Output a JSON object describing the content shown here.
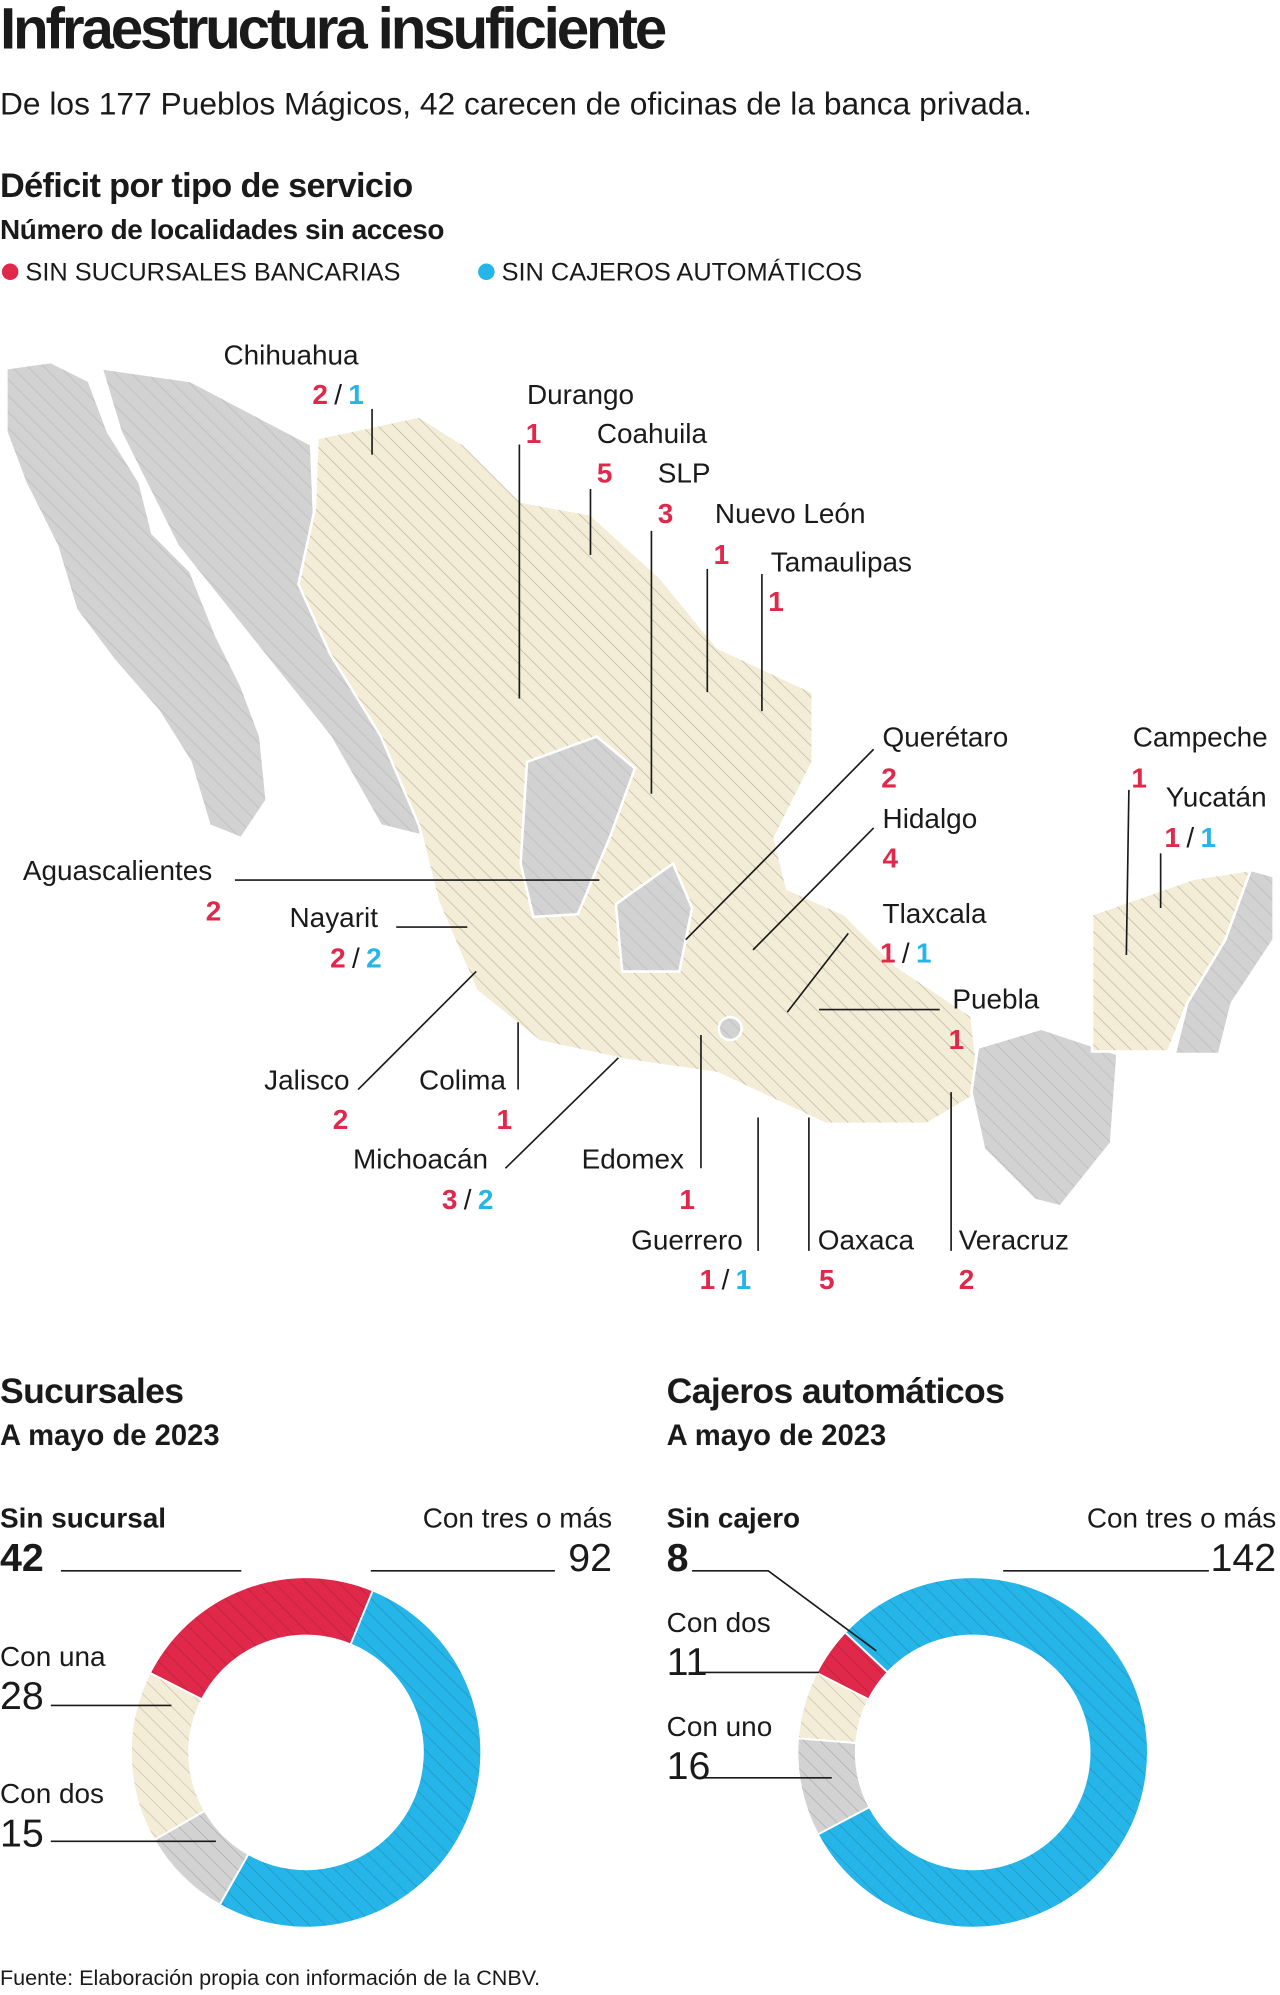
{
  "header": {
    "title": "Infraestructura insuficiente",
    "subtitle": "De los 177 Pueblos Mágicos, 42 carecen de oficinas de la banca privada."
  },
  "map": {
    "title": "Déficit por tipo de servicio",
    "subtitle": "Número de localidades sin acceso",
    "legend": [
      {
        "label": "SIN SUCURSALES BANCARIAS",
        "color": "#e0284a"
      },
      {
        "label": "SIN CAJEROS AUTOMÁTICOS",
        "color": "#25b5e8"
      }
    ],
    "separator": "/",
    "states": [
      {
        "name": "Chihuahua",
        "sin_sucursales": 2,
        "sin_cajeros": 1
      },
      {
        "name": "Durango",
        "sin_sucursales": 1
      },
      {
        "name": "Coahuila",
        "sin_sucursales": 5
      },
      {
        "name": "SLP",
        "sin_sucursales": 3
      },
      {
        "name": "Nuevo León",
        "sin_sucursales": 1
      },
      {
        "name": "Tamaulipas",
        "sin_sucursales": 1
      },
      {
        "name": "Querétaro",
        "sin_sucursales": 2
      },
      {
        "name": "Hidalgo",
        "sin_sucursales": 4
      },
      {
        "name": "Tlaxcala",
        "sin_sucursales": 1,
        "sin_cajeros": 1
      },
      {
        "name": "Puebla",
        "sin_sucursales": 1
      },
      {
        "name": "Campeche",
        "sin_sucursales": 1
      },
      {
        "name": "Yucatán",
        "sin_sucursales": 1,
        "sin_cajeros": 1
      },
      {
        "name": "Aguascalientes",
        "sin_sucursales": 2
      },
      {
        "name": "Nayarit",
        "sin_sucursales": 2,
        "sin_cajeros": 2
      },
      {
        "name": "Jalisco",
        "sin_sucursales": 2
      },
      {
        "name": "Colima",
        "sin_sucursales": 1
      },
      {
        "name": "Michoacán",
        "sin_sucursales": 3,
        "sin_cajeros": 2
      },
      {
        "name": "Edomex",
        "sin_sucursales": 1
      },
      {
        "name": "Guerrero",
        "sin_sucursales": 1,
        "sin_cajeros": 1
      },
      {
        "name": "Oaxaca",
        "sin_sucursales": 5
      },
      {
        "name": "Veracruz",
        "sin_sucursales": 2
      }
    ]
  },
  "chart_data": [
    {
      "type": "pie",
      "title": "Sucursales",
      "subtitle": "A mayo de 2023",
      "categories": [
        "Sin sucursal",
        "Con tres o más",
        "Con dos",
        "Con una"
      ],
      "values": [
        42,
        92,
        15,
        28
      ],
      "colors": [
        "#e0284a",
        "#25b5e8",
        "#d2d2d2",
        "#f3ecd6"
      ]
    },
    {
      "type": "pie",
      "title": "Cajeros automáticos",
      "subtitle": "A mayo de 2023",
      "categories": [
        "Sin cajero",
        "Con tres o más",
        "Con uno",
        "Con dos"
      ],
      "values": [
        8,
        142,
        16,
        11
      ],
      "colors": [
        "#e0284a",
        "#25b5e8",
        "#d2d2d2",
        "#f3ecd6"
      ]
    }
  ],
  "source": "Fuente: Elaboración propia con información de la CNBV."
}
